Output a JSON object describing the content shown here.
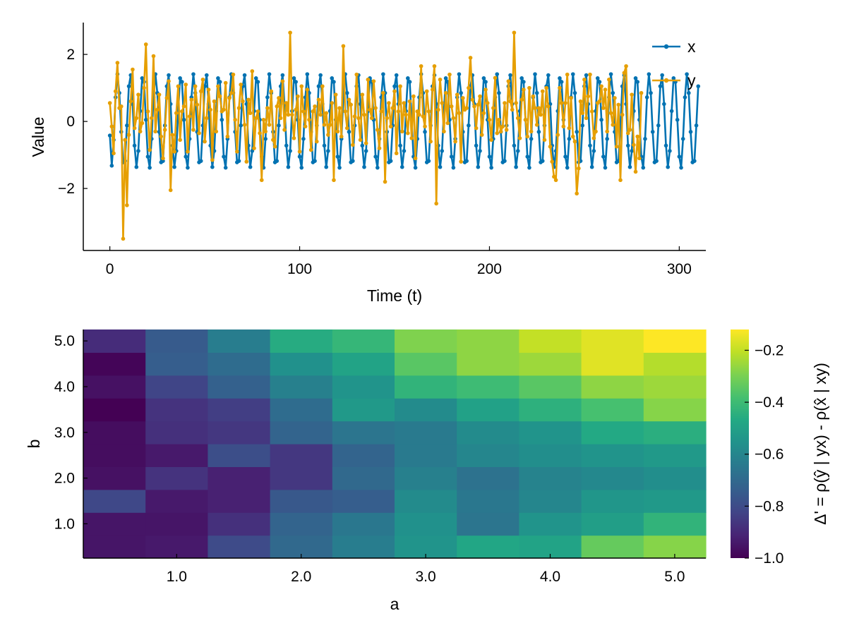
{
  "chart_data": [
    {
      "type": "line",
      "xlabel": "Time (t)",
      "ylabel": "Value",
      "xlim": [
        -14,
        314
      ],
      "ylim": [
        -3.85,
        2.95
      ],
      "xticks": [
        0,
        100,
        200,
        300
      ],
      "xtick_labels": [
        "0",
        "100",
        "200",
        "300"
      ],
      "yticks": [
        2,
        0,
        -2
      ],
      "ytick_labels": [
        "2",
        "0",
        "−2"
      ],
      "grid": false,
      "legend_position": "top-right",
      "series": [
        {
          "name": "x",
          "color": "#0072B2",
          "x_start": 0,
          "x_step": 1,
          "values": [
            -0.42,
            -1.32,
            -0.55,
            0.72,
            1.41,
            0.85,
            -0.31,
            -1.22,
            -1.18,
            -0.12,
            1.05,
            1.38,
            0.52,
            -0.72,
            -1.36,
            -0.88,
            0.31,
            1.29,
            1.18,
            0.05,
            -1.05,
            -1.38,
            -0.52,
            0.72,
            1.41,
            0.85,
            -0.31,
            -1.22,
            -1.18,
            -0.12,
            1.05,
            1.38,
            0.52,
            -0.72,
            -1.36,
            -0.88,
            0.31,
            1.29,
            1.18,
            0.05,
            -1.05,
            -1.38,
            -0.52,
            0.72,
            1.41,
            0.85,
            -0.31,
            -1.22,
            -1.18,
            -0.12,
            1.05,
            1.38,
            0.52,
            -0.72,
            -1.36,
            -0.88,
            0.31,
            1.29,
            1.18,
            0.05,
            -1.05,
            -1.38,
            -0.52,
            0.72,
            1.41,
            0.85,
            -0.31,
            -1.22,
            -1.18,
            -0.12,
            1.05,
            1.38,
            0.52,
            -0.72,
            -1.36,
            -0.88,
            0.31,
            1.29,
            1.18,
            0.05,
            -1.05,
            -1.38,
            -0.52,
            0.72,
            1.41,
            0.85,
            -0.31,
            -1.22,
            -1.18,
            -0.12,
            1.05,
            1.38,
            0.52,
            -0.72,
            -1.36,
            -0.88,
            0.31,
            1.29,
            1.18,
            0.05,
            -1.05,
            -1.38,
            -0.52,
            0.72,
            1.41,
            0.85,
            -0.31,
            -1.22,
            -1.18,
            -0.12,
            1.05,
            1.38,
            0.52,
            -0.72,
            -1.36,
            -0.88,
            0.31,
            1.29,
            1.18,
            0.05,
            -1.05,
            -1.38,
            -0.52,
            0.72,
            1.41,
            0.85,
            -0.31,
            -1.22,
            -1.18,
            -0.12,
            1.05,
            1.38,
            0.52,
            -0.72,
            -1.36,
            -0.88,
            0.31,
            1.29,
            1.18,
            0.05,
            -1.05,
            -1.38,
            -0.52,
            0.72,
            1.41,
            0.85,
            -0.31,
            -1.22,
            -1.18,
            -0.12,
            1.05,
            1.38,
            0.52,
            -0.72,
            -1.36,
            -0.88,
            0.31,
            1.29,
            1.18,
            0.05,
            -1.05,
            -1.38,
            -0.52,
            0.72,
            1.41,
            0.85,
            -0.31,
            -1.22,
            -1.18,
            -0.12,
            1.05,
            1.38,
            0.52,
            -0.72,
            -1.36,
            -0.88,
            0.31,
            1.29,
            1.18,
            0.05,
            -1.05,
            -1.38,
            -0.52,
            0.72,
            1.41,
            0.85,
            -0.31,
            -1.22,
            -1.18,
            -0.12,
            1.05,
            1.38,
            0.52,
            -0.72,
            -1.36,
            -0.88,
            0.31,
            1.29,
            1.18,
            0.05,
            -1.05,
            -1.38,
            -0.52,
            0.72,
            1.41,
            0.85,
            -0.31,
            -1.22,
            -1.18,
            -0.12,
            1.05,
            1.38,
            0.52,
            -0.72,
            -1.36,
            -0.88,
            0.31,
            1.29,
            1.18,
            0.05,
            -1.05,
            -1.38,
            -0.52,
            0.72,
            1.41,
            0.85,
            -0.31,
            -1.22,
            -1.18,
            -0.12,
            1.05,
            1.38,
            0.52,
            -0.72,
            -1.36,
            -0.88,
            0.31,
            1.29,
            1.18,
            0.05,
            -1.05,
            -1.38,
            -0.52,
            0.72,
            1.41,
            0.85,
            -0.31,
            -1.22,
            -1.18,
            -0.12,
            1.05,
            1.38,
            0.52,
            -0.72,
            -1.36,
            -0.88,
            0.31,
            1.29,
            1.18,
            0.05,
            -1.05,
            -1.38,
            -0.52,
            0.72,
            1.41,
            0.85,
            -0.31,
            -1.22,
            -1.18,
            -0.12,
            1.05,
            1.38,
            0.52,
            -0.72,
            -1.36,
            -0.88,
            0.31,
            1.29,
            1.18,
            0.05,
            -1.05,
            -1.38,
            -0.52,
            0.72,
            1.41,
            0.85,
            -0.31,
            -1.22,
            -1.18,
            -0.12,
            1.05,
            1.38,
            0.52,
            -0.72,
            -1.36,
            -0.88,
            0.31,
            1.29,
            1.18,
            0.05,
            -1.05,
            -1.38,
            -0.52,
            0.72,
            1.41,
            0.85,
            -0.31,
            -1.22,
            -1.18,
            -0.12,
            1.05
          ]
        },
        {
          "name": "y",
          "color": "#E69F00",
          "x_start": 0,
          "x_step": 1,
          "values": [
            0.55,
            -0.15,
            -0.95,
            0.9,
            1.75,
            0.4,
            0.45,
            -3.5,
            -0.55,
            -2.5,
            -0.4,
            0.6,
            1.55,
            -0.2,
            0.1,
            0.8,
            -0.3,
            -0.05,
            1.0,
            2.3,
            0.3,
            -0.85,
            0.1,
            1.95,
            -0.3,
            0.35,
            0.8,
            -0.45,
            -1.1,
            -0.25,
            0.7,
            1.2,
            -2.05,
            -0.4,
            -0.9,
            0.25,
            1.05,
            -0.55,
            0.3,
            0.45,
            1.1,
            -0.9,
            0.15,
            0.65,
            -0.25,
            1.05,
            0.5,
            -0.35,
            0.9,
            1.25,
            -0.6,
            0.1,
            0.95,
            0.35,
            -1.15,
            0.6,
            -0.3,
            1.05,
            0.75,
            0.3,
            0.35,
            1.15,
            -0.45,
            0.7,
            0.85,
            1.4,
            0.05,
            -0.9,
            0.4,
            1.1,
            0.6,
            -0.1,
            -1.2,
            0.65,
            0.25,
            1.5,
            -0.8,
            0.1,
            0.3,
            -0.35,
            -1.75,
            0.05,
            -0.3,
            0.4,
            -0.1,
            0.9,
            -0.55,
            -0.75,
            0.45,
            0.7,
            0.1,
            1.2,
            -0.25,
            0.55,
            0.2,
            2.65,
            0.2,
            -0.5,
            0.35,
            0.75,
            -0.9,
            1.05,
            0.3,
            -0.15,
            0.95,
            0.05,
            -0.85,
            0.3,
            0.45,
            -0.6,
            0.65,
            0.2,
            1.05,
            -0.1,
            0.25,
            -0.4,
            -0.1,
            0.55,
            -1.75,
            0.8,
            -0.3,
            0.4,
            -0.45,
            2.25,
            0.3,
            -0.2,
            0.65,
            0.5,
            -0.7,
            0.15,
            1.4,
            0.1,
            -0.55,
            0.8,
            0.2,
            -0.65,
            1.25,
            0.35,
            0.1,
            1.2,
            0.4,
            -0.25,
            -0.8,
            0.3,
            0.85,
            -1.8,
            0.1,
            0.55,
            -0.15,
            0.4,
            0.9,
            -0.95,
            0.3,
            1.05,
            -0.3,
            0.55,
            0.2,
            -0.35,
            0.6,
            -0.5,
            0.75,
            -1.1,
            0.3,
            0.2,
            1.65,
            0.15,
            -0.15,
            0.9,
            0.3,
            -0.6,
            0.95,
            1.65,
            -2.45,
            0.35,
            1.25,
            0.55,
            -0.3,
            0.85,
            -0.05,
            1.4,
            0.45,
            0.1,
            -0.6,
            0.8,
            0.25,
            -1.2,
            0.7,
            0.35,
            0.4,
            1.0,
            1.9,
            0.65,
            0.45,
            -0.2,
            0.5,
            0.75,
            -0.4,
            0.25,
            0.95,
            0.55,
            0.05,
            -0.55,
            0.4,
            1.3,
            -0.35,
            0.05,
            -0.3,
            -0.15,
            0.55,
            -0.25,
            1.2,
            0.6,
            0.35,
            2.65,
            0.55,
            0.1,
            -0.5,
            0.65,
            0.95,
            0.05,
            -0.45,
            1.0,
            -0.3,
            0.75,
            0.4,
            -0.1,
            0.4,
            0.2,
            0.9,
            -0.55,
            1.0,
            0.45,
            -0.75,
            -1.2,
            -1.65,
            -1.75,
            -0.4,
            1.0,
            0.55,
            -0.15,
            0.55,
            1.4,
            -0.2,
            0.7,
            -0.45,
            -0.6,
            -2.15,
            -1.4,
            0.6,
            0.25,
            1.25,
            0.1,
            0.75,
            1.4,
            0.3,
            -0.5,
            -0.3,
            0.55,
            0.6,
            1.05,
            0.4,
            0.95,
            -0.3,
            1.25,
            0.25,
            -0.1,
            0.7,
            -0.75,
            0.5,
            -1.75,
            0.2,
            1.45,
            1.65,
            -0.35,
            -0.25,
            0.8,
            -0.7,
            -1.5,
            -0.45,
            -1.1,
            0.85
          ]
        }
      ]
    },
    {
      "type": "heatmap",
      "xlabel": "a",
      "ylabel": "b",
      "xlim": [
        0.25,
        5.25
      ],
      "ylim": [
        0.25,
        5.25
      ],
      "x": [
        0.5,
        1.0,
        1.5,
        2.0,
        2.5,
        3.0,
        3.5,
        4.0,
        4.5,
        5.0
      ],
      "y": [
        0.5,
        1.0,
        1.5,
        2.0,
        2.5,
        3.0,
        3.5,
        4.0,
        4.5,
        5.0
      ],
      "xticks": [
        1.0,
        2.0,
        3.0,
        4.0,
        5.0
      ],
      "xtick_labels": [
        "1.0",
        "2.0",
        "3.0",
        "4.0",
        "5.0"
      ],
      "yticks": [
        1.0,
        2.0,
        3.0,
        4.0,
        5.0
      ],
      "ytick_labels": [
        "1.0",
        "2.0",
        "3.0",
        "4.0",
        "5.0"
      ],
      "colormap": "viridis",
      "clim": [
        -1.0,
        -0.12
      ],
      "colorbar_label": "Δ' = ρ(ŷ | yx) - ρ(x̂ | xy)",
      "colorbar_ticks": [
        -1.0,
        -0.8,
        -0.6,
        -0.4,
        -0.2
      ],
      "colorbar_tick_labels": [
        "−1.0",
        "−0.8",
        "−0.6",
        "−0.4",
        "−0.2"
      ],
      "values_rows_by_b": [
        [
          -0.95,
          -0.94,
          -0.8,
          -0.7,
          -0.63,
          -0.55,
          -0.48,
          -0.49,
          -0.33,
          -0.28
        ],
        [
          -0.95,
          -0.95,
          -0.88,
          -0.72,
          -0.65,
          -0.56,
          -0.66,
          -0.55,
          -0.51,
          -0.43
        ],
        [
          -0.81,
          -0.94,
          -0.92,
          -0.76,
          -0.74,
          -0.58,
          -0.65,
          -0.6,
          -0.54,
          -0.53
        ],
        [
          -0.96,
          -0.87,
          -0.92,
          -0.86,
          -0.7,
          -0.62,
          -0.67,
          -0.61,
          -0.59,
          -0.57
        ],
        [
          -0.97,
          -0.94,
          -0.79,
          -0.86,
          -0.72,
          -0.64,
          -0.6,
          -0.57,
          -0.55,
          -0.53
        ],
        [
          -0.97,
          -0.88,
          -0.86,
          -0.72,
          -0.66,
          -0.64,
          -0.58,
          -0.55,
          -0.47,
          -0.45
        ],
        [
          -1.0,
          -0.87,
          -0.84,
          -0.69,
          -0.53,
          -0.58,
          -0.5,
          -0.44,
          -0.38,
          -0.28
        ],
        [
          -0.96,
          -0.82,
          -0.73,
          -0.62,
          -0.55,
          -0.43,
          -0.4,
          -0.35,
          -0.27,
          -0.25
        ],
        [
          -0.99,
          -0.74,
          -0.69,
          -0.56,
          -0.49,
          -0.35,
          -0.27,
          -0.25,
          -0.16,
          -0.22
        ],
        [
          -0.89,
          -0.75,
          -0.63,
          -0.46,
          -0.42,
          -0.29,
          -0.27,
          -0.2,
          -0.16,
          -0.12
        ]
      ]
    }
  ]
}
